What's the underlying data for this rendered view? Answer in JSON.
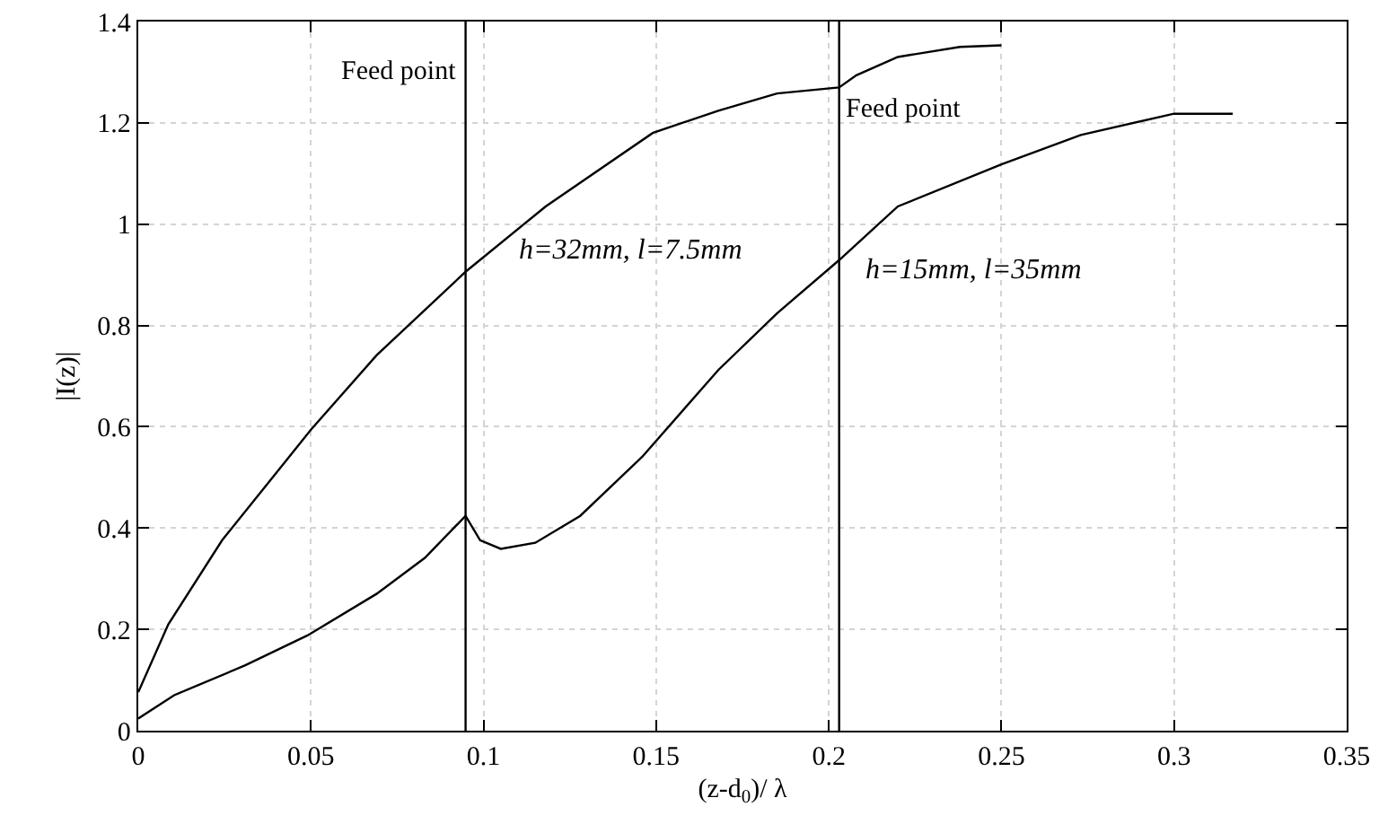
{
  "chart_data": {
    "type": "line",
    "xlabel": "(z-d$_{0}$)/ λ",
    "ylabel": "|I(z)|",
    "xlim": [
      0,
      0.35
    ],
    "xticks": [
      0,
      0.05,
      0.1,
      0.15,
      0.2,
      0.25,
      0.3,
      0.35
    ],
    "ylim": [
      0,
      1.4
    ],
    "yticks": [
      0,
      0.2,
      0.4,
      0.6,
      0.8,
      1,
      1.2,
      1.4
    ],
    "grid": true,
    "marker": "none",
    "line_style": "solid",
    "series": [
      {
        "color": "#000000",
        "x": [
          0,
          0.0087,
          0.0243,
          0.05,
          0.069,
          0.0948,
          0.118,
          0.149,
          0.168,
          0.185,
          0.203,
          0.208,
          0.22,
          0.238,
          0.25
        ],
        "values": [
          0.076,
          0.21,
          0.376,
          0.594,
          0.741,
          0.906,
          1.035,
          1.18,
          1.224,
          1.258,
          1.27,
          1.294,
          1.33,
          1.35,
          1.353
        ]
      },
      {
        "color": "#000000",
        "x": [
          0,
          0.0104,
          0.031,
          0.049,
          0.069,
          0.083,
          0.0948,
          0.099,
          0.105,
          0.115,
          0.128,
          0.146,
          0.168,
          0.185,
          0.203,
          0.22,
          0.25,
          0.273,
          0.3,
          0.317
        ],
        "values": [
          0.024,
          0.07,
          0.129,
          0.188,
          0.27,
          0.341,
          0.424,
          0.376,
          0.359,
          0.371,
          0.424,
          0.541,
          0.712,
          0.824,
          0.929,
          1.035,
          1.118,
          1.176,
          1.218,
          1.218
        ]
      }
    ],
    "ref_lines": [
      {
        "axis": "x",
        "value": 0.0948,
        "label": "Feed point",
        "color": "#000000"
      },
      {
        "axis": "x",
        "value": 0.203,
        "label": "Feed point",
        "color": "#000000"
      }
    ],
    "annotations": [
      "h=32mm, l=7.5mm",
      "h=15mm, l=35mm"
    ]
  }
}
